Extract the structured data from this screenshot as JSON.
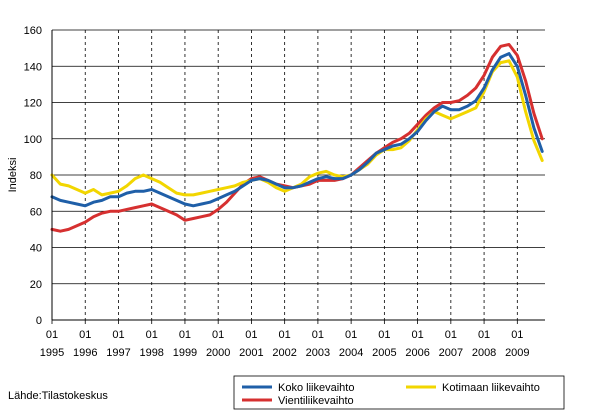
{
  "source": "Lähde:Tilastokeskus",
  "chart_data": {
    "type": "line",
    "ylabel": "Indeksi",
    "xlabel": "",
    "ylim": [
      0,
      160
    ],
    "yticks": [
      0,
      20,
      40,
      60,
      80,
      100,
      120,
      140,
      160
    ],
    "x_start": 1995.0,
    "x_end": 2009.833,
    "years": [
      "1995",
      "1996",
      "1997",
      "1998",
      "1999",
      "2000",
      "2001",
      "2002",
      "2003",
      "2004",
      "2005",
      "2006",
      "2007",
      "2008",
      "2009"
    ],
    "month_label": "01",
    "grid": "vertical dashed at January of each year, horizontal solid at y ticks",
    "legend_position": "bottom",
    "series": [
      {
        "name": "Koko liikevaihto",
        "color": "#1f5fa8",
        "points": [
          [
            1995.0,
            68
          ],
          [
            1995.25,
            66
          ],
          [
            1995.5,
            65
          ],
          [
            1995.75,
            64
          ],
          [
            1996.0,
            63
          ],
          [
            1996.25,
            65
          ],
          [
            1996.5,
            66
          ],
          [
            1996.75,
            68
          ],
          [
            1997.0,
            68
          ],
          [
            1997.25,
            70
          ],
          [
            1997.5,
            71
          ],
          [
            1997.75,
            71
          ],
          [
            1998.0,
            72
          ],
          [
            1998.25,
            70
          ],
          [
            1998.5,
            68
          ],
          [
            1998.75,
            66
          ],
          [
            1999.0,
            64
          ],
          [
            1999.25,
            63
          ],
          [
            1999.5,
            64
          ],
          [
            1999.75,
            65
          ],
          [
            2000.0,
            67
          ],
          [
            2000.25,
            69
          ],
          [
            2000.5,
            71
          ],
          [
            2000.75,
            74
          ],
          [
            2001.0,
            77
          ],
          [
            2001.25,
            78
          ],
          [
            2001.5,
            77
          ],
          [
            2001.75,
            75
          ],
          [
            2002.0,
            73
          ],
          [
            2002.25,
            73
          ],
          [
            2002.5,
            74
          ],
          [
            2002.75,
            76
          ],
          [
            2003.0,
            78
          ],
          [
            2003.25,
            79
          ],
          [
            2003.5,
            78
          ],
          [
            2003.75,
            78
          ],
          [
            2004.0,
            80
          ],
          [
            2004.25,
            83
          ],
          [
            2004.5,
            87
          ],
          [
            2004.75,
            92
          ],
          [
            2005.0,
            94
          ],
          [
            2005.25,
            96
          ],
          [
            2005.5,
            97
          ],
          [
            2005.75,
            100
          ],
          [
            2006.0,
            104
          ],
          [
            2006.25,
            110
          ],
          [
            2006.5,
            115
          ],
          [
            2006.75,
            118
          ],
          [
            2007.0,
            116
          ],
          [
            2007.25,
            116
          ],
          [
            2007.5,
            118
          ],
          [
            2007.75,
            121
          ],
          [
            2008.0,
            128
          ],
          [
            2008.25,
            138
          ],
          [
            2008.5,
            145
          ],
          [
            2008.75,
            147
          ],
          [
            2009.0,
            140
          ],
          [
            2009.25,
            124
          ],
          [
            2009.5,
            106
          ],
          [
            2009.75,
            93
          ]
        ]
      },
      {
        "name": "Vientiliikevaihto",
        "color": "#d63030",
        "points": [
          [
            1995.0,
            50
          ],
          [
            1995.25,
            49
          ],
          [
            1995.5,
            50
          ],
          [
            1995.75,
            52
          ],
          [
            1996.0,
            54
          ],
          [
            1996.25,
            57
          ],
          [
            1996.5,
            59
          ],
          [
            1996.75,
            60
          ],
          [
            1997.0,
            60
          ],
          [
            1997.25,
            61
          ],
          [
            1997.5,
            62
          ],
          [
            1997.75,
            63
          ],
          [
            1998.0,
            64
          ],
          [
            1998.25,
            62
          ],
          [
            1998.5,
            60
          ],
          [
            1998.75,
            58
          ],
          [
            1999.0,
            55
          ],
          [
            1999.25,
            56
          ],
          [
            1999.5,
            57
          ],
          [
            1999.75,
            58
          ],
          [
            2000.0,
            61
          ],
          [
            2000.25,
            65
          ],
          [
            2000.5,
            70
          ],
          [
            2000.75,
            75
          ],
          [
            2001.0,
            78
          ],
          [
            2001.25,
            79
          ],
          [
            2001.5,
            77
          ],
          [
            2001.75,
            75
          ],
          [
            2002.0,
            74
          ],
          [
            2002.25,
            73
          ],
          [
            2002.5,
            74
          ],
          [
            2002.75,
            75
          ],
          [
            2003.0,
            77
          ],
          [
            2003.25,
            77
          ],
          [
            2003.5,
            77
          ],
          [
            2003.75,
            78
          ],
          [
            2004.0,
            80
          ],
          [
            2004.25,
            84
          ],
          [
            2004.5,
            88
          ],
          [
            2004.75,
            92
          ],
          [
            2005.0,
            95
          ],
          [
            2005.25,
            98
          ],
          [
            2005.5,
            100
          ],
          [
            2005.75,
            103
          ],
          [
            2006.0,
            108
          ],
          [
            2006.25,
            113
          ],
          [
            2006.5,
            117
          ],
          [
            2006.75,
            120
          ],
          [
            2007.0,
            120
          ],
          [
            2007.25,
            121
          ],
          [
            2007.5,
            124
          ],
          [
            2007.75,
            128
          ],
          [
            2008.0,
            135
          ],
          [
            2008.25,
            145
          ],
          [
            2008.5,
            151
          ],
          [
            2008.75,
            152
          ],
          [
            2009.0,
            146
          ],
          [
            2009.25,
            132
          ],
          [
            2009.5,
            114
          ],
          [
            2009.75,
            100
          ]
        ]
      },
      {
        "name": "Kotimaan liikevaihto",
        "color": "#f2d600",
        "points": [
          [
            1995.0,
            80
          ],
          [
            1995.25,
            75
          ],
          [
            1995.5,
            74
          ],
          [
            1995.75,
            72
          ],
          [
            1996.0,
            70
          ],
          [
            1996.25,
            72
          ],
          [
            1996.5,
            69
          ],
          [
            1996.75,
            70
          ],
          [
            1997.0,
            71
          ],
          [
            1997.25,
            74
          ],
          [
            1997.5,
            78
          ],
          [
            1997.75,
            80
          ],
          [
            1998.0,
            78
          ],
          [
            1998.25,
            76
          ],
          [
            1998.5,
            73
          ],
          [
            1998.75,
            70
          ],
          [
            1999.0,
            69
          ],
          [
            1999.25,
            69
          ],
          [
            1999.5,
            70
          ],
          [
            1999.75,
            71
          ],
          [
            2000.0,
            72
          ],
          [
            2000.25,
            73
          ],
          [
            2000.5,
            74
          ],
          [
            2000.75,
            76
          ],
          [
            2001.0,
            77
          ],
          [
            2001.25,
            78
          ],
          [
            2001.5,
            76
          ],
          [
            2001.75,
            73
          ],
          [
            2002.0,
            71
          ],
          [
            2002.25,
            73
          ],
          [
            2002.5,
            75
          ],
          [
            2002.75,
            79
          ],
          [
            2003.0,
            81
          ],
          [
            2003.25,
            82
          ],
          [
            2003.5,
            80
          ],
          [
            2003.75,
            79
          ],
          [
            2004.0,
            80
          ],
          [
            2004.25,
            83
          ],
          [
            2004.5,
            86
          ],
          [
            2004.75,
            91
          ],
          [
            2005.0,
            94
          ],
          [
            2005.25,
            94
          ],
          [
            2005.5,
            95
          ],
          [
            2005.75,
            99
          ],
          [
            2006.0,
            105
          ],
          [
            2006.25,
            111
          ],
          [
            2006.5,
            115
          ],
          [
            2006.75,
            113
          ],
          [
            2007.0,
            111
          ],
          [
            2007.25,
            113
          ],
          [
            2007.5,
            115
          ],
          [
            2007.75,
            117
          ],
          [
            2008.0,
            126
          ],
          [
            2008.25,
            137
          ],
          [
            2008.5,
            142
          ],
          [
            2008.75,
            143
          ],
          [
            2009.0,
            134
          ],
          [
            2009.25,
            115
          ],
          [
            2009.5,
            99
          ],
          [
            2009.75,
            88
          ]
        ]
      }
    ]
  }
}
